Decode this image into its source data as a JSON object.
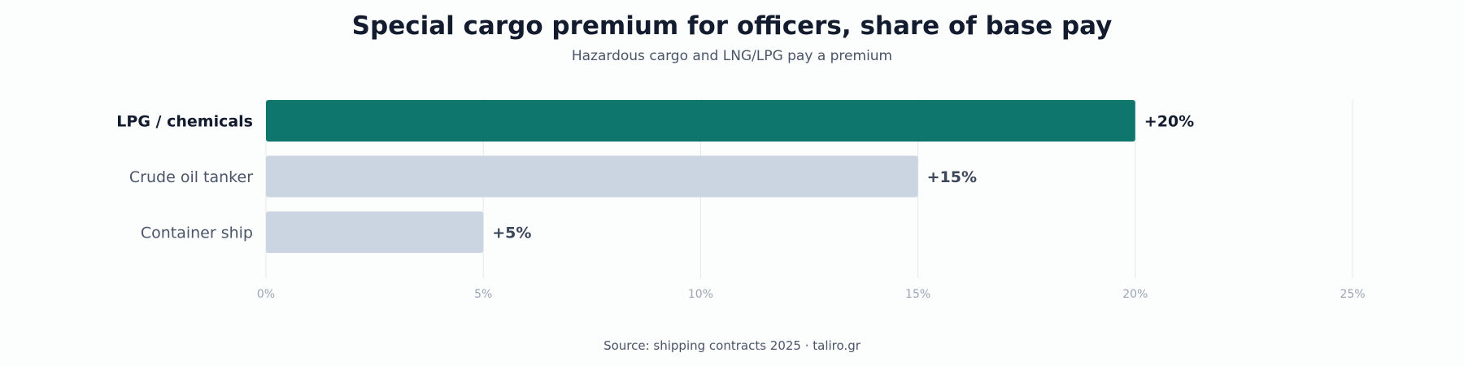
{
  "header": {
    "title": "Special cargo premium for officers, share of base pay",
    "subtitle": "Hazardous cargo and LNG/LPG pay a premium"
  },
  "footer": {
    "source": "Source: shipping contracts 2025 · taliro.gr"
  },
  "colors": {
    "highlight": "#0f766e",
    "default": "#cbd5e1"
  },
  "chart_data": {
    "type": "bar",
    "orientation": "horizontal",
    "title": "Special cargo premium for officers, share of base pay",
    "subtitle": "Hazardous cargo and LNG/LPG pay a premium",
    "xlabel": "",
    "ylabel": "",
    "categories": [
      "LPG / chemicals",
      "Crude oil tanker",
      "Container ship"
    ],
    "values": [
      20,
      15,
      5
    ],
    "value_labels": [
      "+20%",
      "+15%",
      "+5%"
    ],
    "highlight": [
      "LPG / chemicals"
    ],
    "xlim": [
      0,
      25
    ],
    "ticks": [
      0,
      5,
      10,
      15,
      20,
      25
    ],
    "tick_labels": [
      "0%",
      "5%",
      "10%",
      "15%",
      "20%",
      "25%"
    ],
    "grid": true,
    "legend": "none"
  }
}
